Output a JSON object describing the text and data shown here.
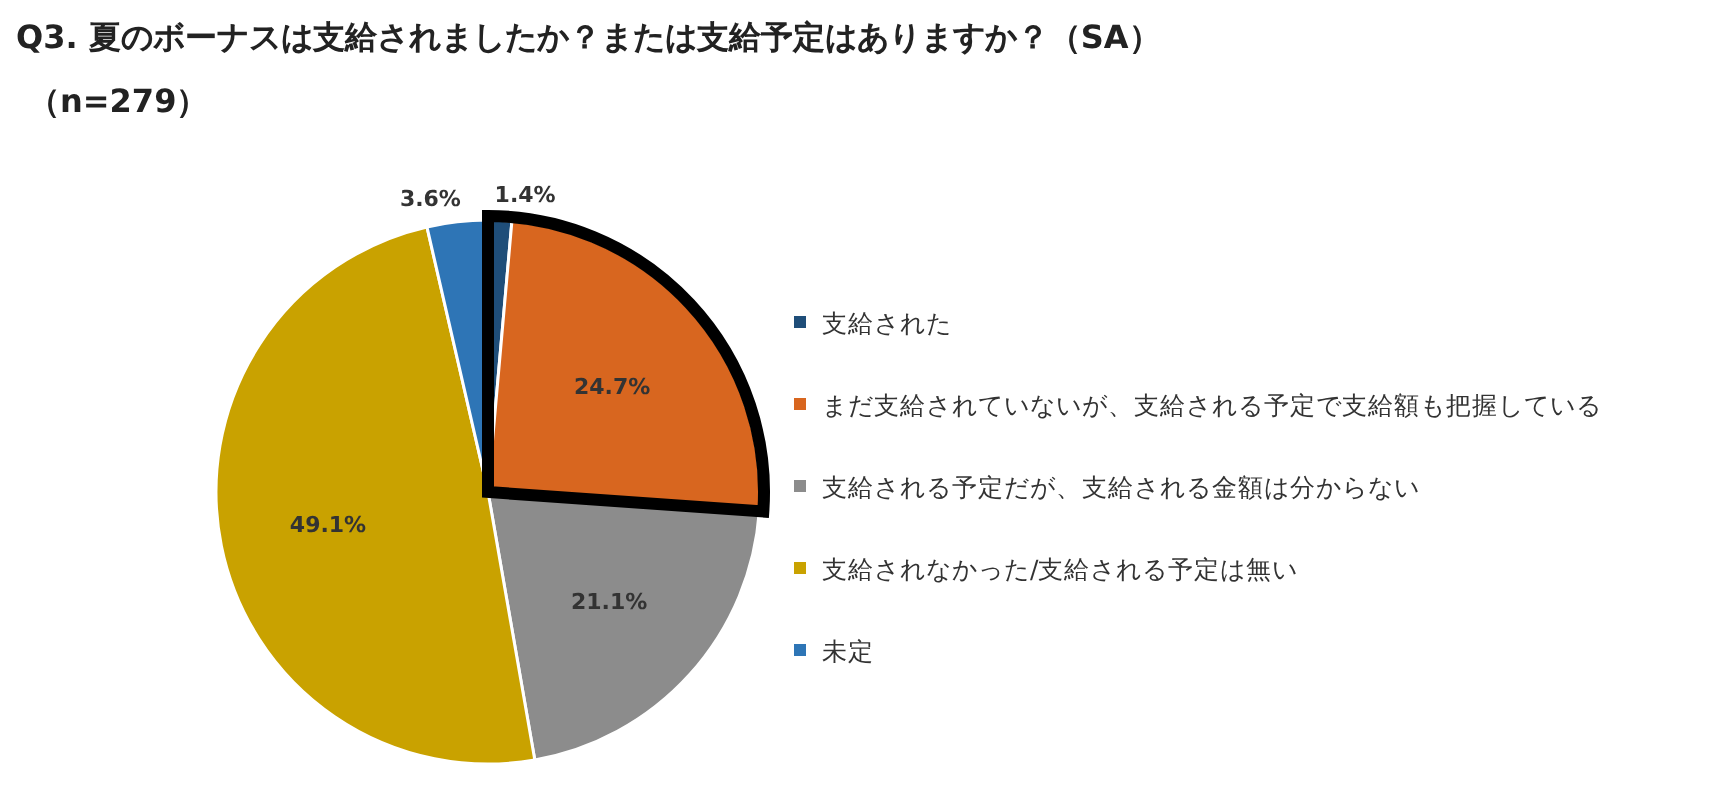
{
  "chart_data": {
    "type": "pie",
    "title": "Q3. 夏のボーナスは支給されましたか？または支給予定はありますか？（SA）",
    "subtitle": "（n=279）",
    "categories": [
      "支給された",
      "まだ支給されていないが、支給される予定で支給額も把握している",
      "支給される予定だが、支給される金額は分からない",
      "支給されなかった/支給される予定は無い",
      "未定"
    ],
    "values": [
      1.4,
      24.7,
      21.1,
      49.1,
      3.6
    ],
    "value_labels": [
      "1.4%",
      "24.7%",
      "21.1%",
      "49.1%",
      "3.6%"
    ],
    "colors": [
      "#1f4e79",
      "#d8661f",
      "#8c8c8c",
      "#c9a200",
      "#2e75b6"
    ],
    "legend": "right"
  }
}
